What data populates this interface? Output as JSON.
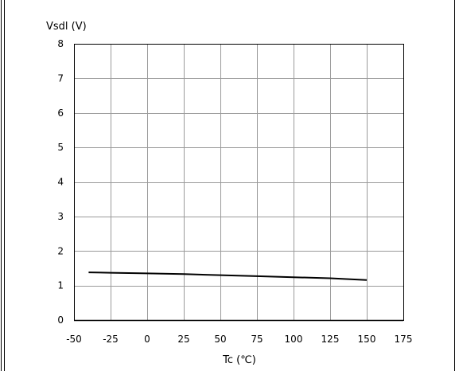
{
  "chart_data": {
    "type": "line",
    "title": "",
    "ylabel": "Vsdl (V)",
    "xlabel": "Tc (℃)",
    "xlim": [
      -50,
      175
    ],
    "ylim": [
      0,
      8
    ],
    "x_ticks": [
      -50,
      -25,
      0,
      25,
      50,
      75,
      100,
      125,
      150,
      175
    ],
    "y_ticks": [
      0,
      1,
      2,
      3,
      4,
      5,
      6,
      7,
      8
    ],
    "grid": true,
    "legend": "none",
    "series": [
      {
        "color": "#000000",
        "x": [
          -40,
          -25,
          0,
          25,
          50,
          75,
          100,
          125,
          150
        ],
        "y": [
          1.38,
          1.37,
          1.35,
          1.33,
          1.3,
          1.27,
          1.24,
          1.21,
          1.16
        ]
      }
    ]
  }
}
